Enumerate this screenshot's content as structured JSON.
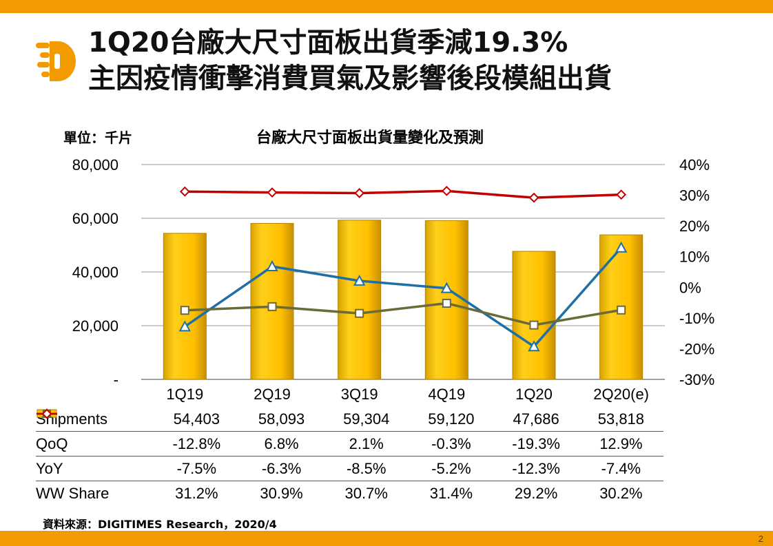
{
  "header": {
    "title_line1": "1Q20台廠大尺寸面板出貨季減19.3%",
    "title_line2": "主因疫情衝擊消費買氣及影響後段模組出貨"
  },
  "unit_label": "單位：千片",
  "source": "資料來源：DIGITIMES Research，2020/4",
  "page_number": "2",
  "colors": {
    "accent": "#f29a00",
    "bar": "#ffc000",
    "qoq": "#1f6fa5",
    "yoy": "#6b6b3a",
    "share": "#c00000"
  },
  "chart_data": {
    "type": "bar",
    "title": "台廠大尺寸面板出貨量變化及預測",
    "categories": [
      "1Q19",
      "2Q19",
      "3Q19",
      "4Q19",
      "1Q20",
      "2Q20(e)"
    ],
    "left_axis": {
      "ylim": [
        0,
        80000
      ],
      "ticks": [
        0,
        20000,
        40000,
        60000,
        80000
      ],
      "tick_labels": [
        "-",
        "20,000",
        "40,000",
        "60,000",
        "80,000"
      ]
    },
    "right_axis": {
      "ylim": [
        -30,
        40
      ],
      "ticks": [
        -30,
        -20,
        -10,
        0,
        10,
        20,
        30,
        40
      ],
      "tick_labels": [
        "-30%",
        "-20%",
        "-10%",
        "0%",
        "10%",
        "20%",
        "30%",
        "40%"
      ]
    },
    "series": [
      {
        "name": "Shipments",
        "type": "bar",
        "axis": "left",
        "values": [
          54403,
          58093,
          59304,
          59120,
          47686,
          53818
        ],
        "labels": [
          "54,403",
          "58,093",
          "59,304",
          "59,120",
          "47,686",
          "53,818"
        ]
      },
      {
        "name": "QoQ",
        "type": "line",
        "axis": "right",
        "marker": "triangle",
        "values": [
          -12.8,
          6.8,
          2.1,
          -0.3,
          -19.3,
          12.9
        ],
        "labels": [
          "-12.8%",
          "6.8%",
          "2.1%",
          "-0.3%",
          "-19.3%",
          "12.9%"
        ]
      },
      {
        "name": "YoY",
        "type": "line",
        "axis": "right",
        "marker": "square",
        "values": [
          -7.5,
          -6.3,
          -8.5,
          -5.2,
          -12.3,
          -7.4
        ],
        "labels": [
          "-7.5%",
          "-6.3%",
          "-8.5%",
          "-5.2%",
          "-12.3%",
          "-7.4%"
        ]
      },
      {
        "name": "WW Share",
        "type": "line",
        "axis": "right",
        "marker": "diamond",
        "values": [
          31.2,
          30.9,
          30.7,
          31.4,
          29.2,
          30.2
        ],
        "labels": [
          "31.2%",
          "30.9%",
          "30.7%",
          "31.4%",
          "29.2%",
          "30.2%"
        ]
      }
    ]
  }
}
